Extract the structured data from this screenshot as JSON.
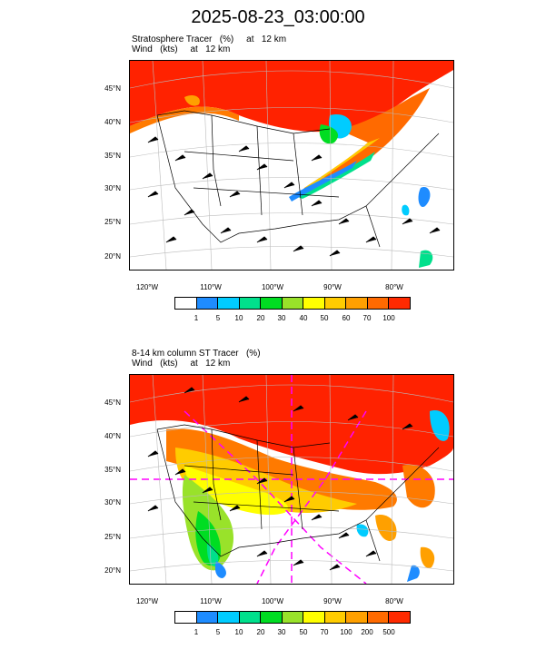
{
  "title": "2025-08-23_03:00:00",
  "panels": [
    {
      "title_line1": "Stratosphere Tracer   (%)     at   12 km",
      "title_line2": "Wind   (kts)     at   12 km",
      "lat_labels": [
        "45°N",
        "40°N",
        "35°N",
        "30°N",
        "25°N",
        "20°N"
      ],
      "lon_labels": [
        "120°W",
        "110°W",
        "100°W",
        "90°W",
        "80°W"
      ],
      "colorbar_labels": [
        "1",
        "5",
        "10",
        "20",
        "30",
        "40",
        "50",
        "60",
        "70",
        "100"
      ]
    },
    {
      "title_line1": "8-14 km column ST Tracer   (%)",
      "title_line2": "Wind   (kts)     at   12 km",
      "lat_labels": [
        "45°N",
        "40°N",
        "35°N",
        "30°N",
        "25°N",
        "20°N"
      ],
      "lon_labels": [
        "120°W",
        "110°W",
        "100°W",
        "90°W",
        "80°W"
      ],
      "colorbar_labels": [
        "1",
        "5",
        "10",
        "20",
        "30",
        "50",
        "70",
        "100",
        "200",
        "500"
      ]
    }
  ],
  "colors": [
    "#ffffff",
    "#1e8cff",
    "#00ccff",
    "#00e08c",
    "#00dd22",
    "#99e22a",
    "#ffff00",
    "#ffcc00",
    "#ffa000",
    "#ff6a00",
    "#ff2a00"
  ]
}
